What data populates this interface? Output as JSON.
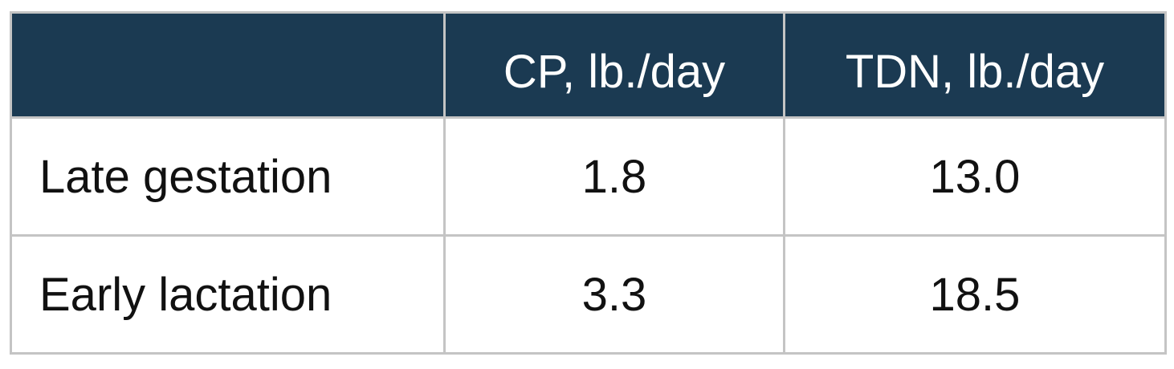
{
  "table": {
    "columns": [
      "CP, lb./day",
      "TDN, lb./day"
    ],
    "rows": [
      [
        "Late gestation",
        "1.8",
        "13.0"
      ],
      [
        "Early lactation",
        "3.3",
        "18.5"
      ]
    ]
  }
}
